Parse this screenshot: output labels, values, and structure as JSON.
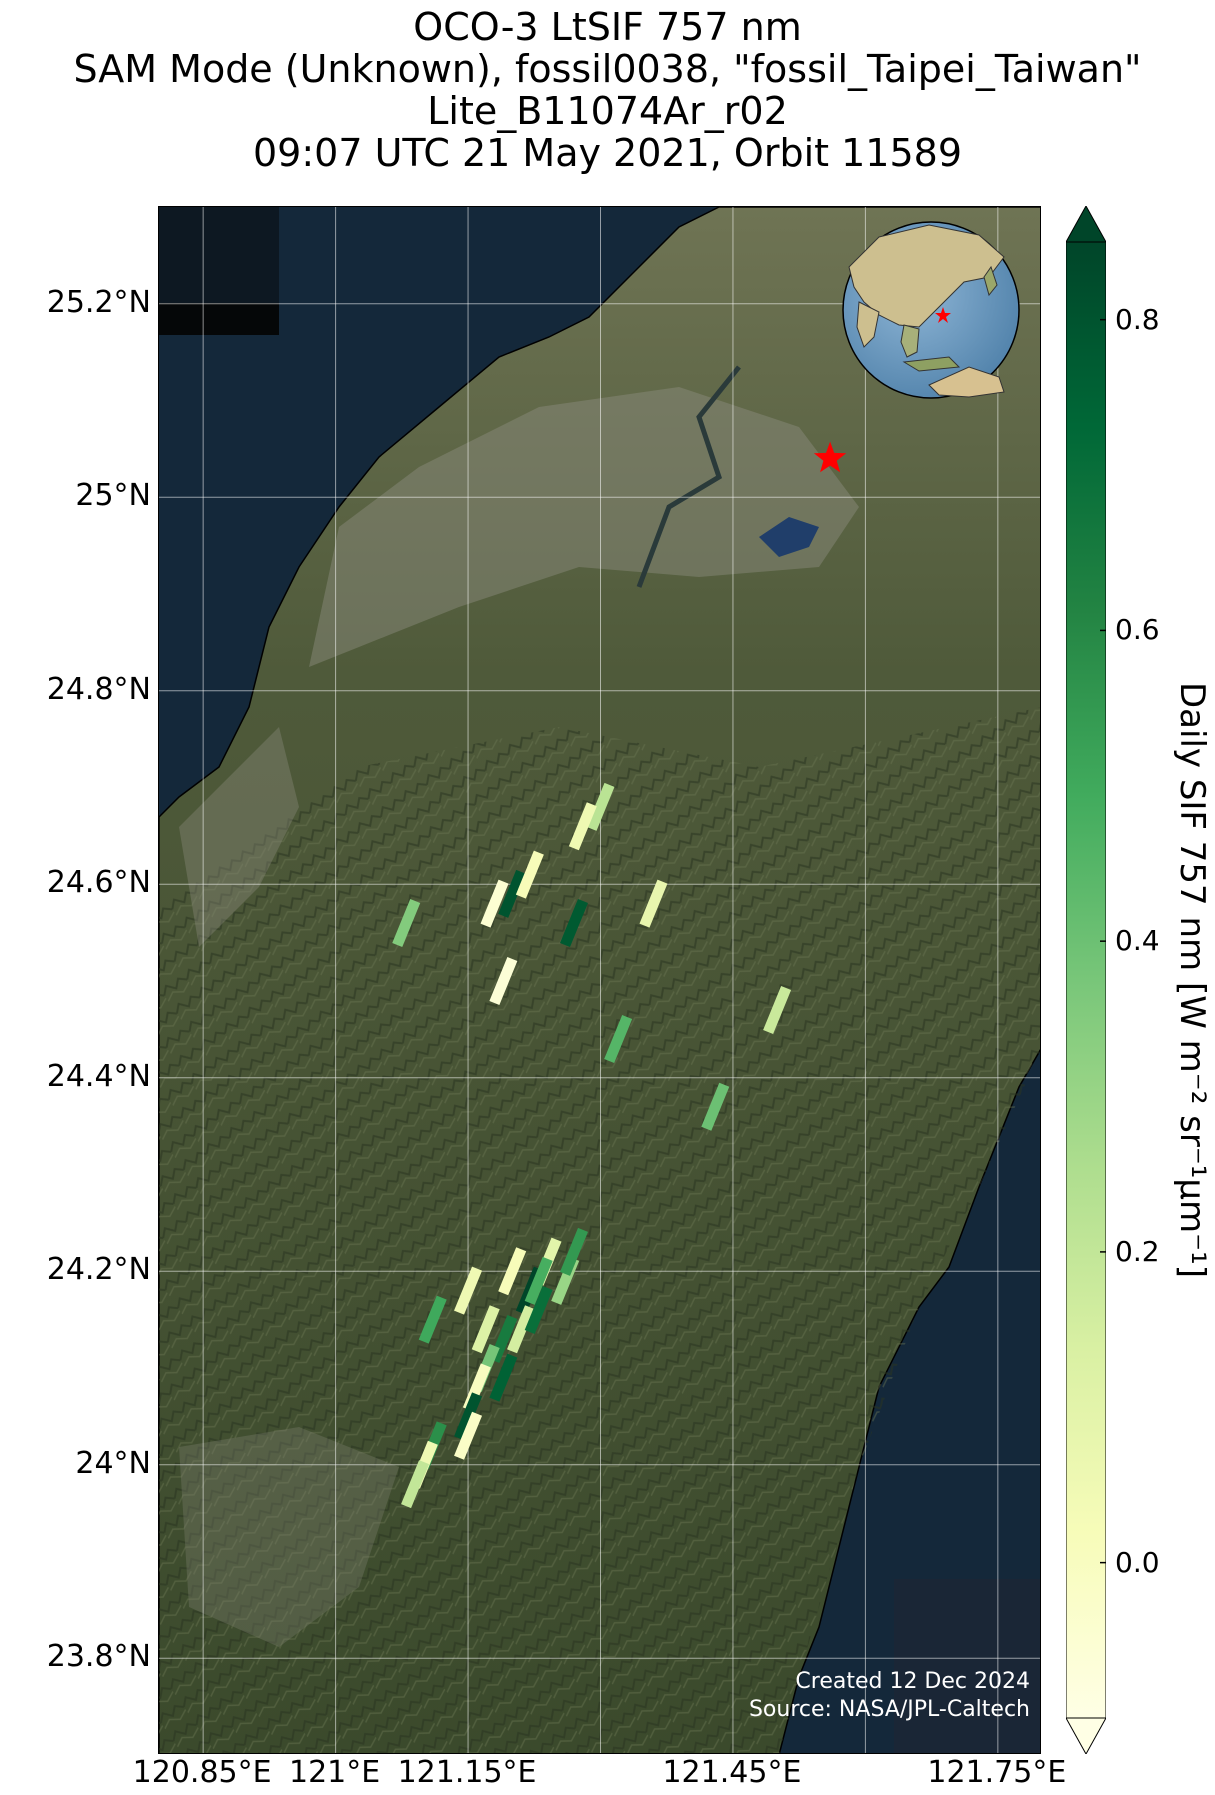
{
  "title": {
    "line1": "OCO-3 LtSIF 757 nm",
    "line2": "SAM Mode (Unknown), fossil0038, \"fossil_Taipei_Taiwan\"",
    "line3": "Lite_B11074Ar_r02",
    "line4": "09:07 UTC 21 May 2021, Orbit 11589"
  },
  "map": {
    "extent": {
      "lon_min": 120.8,
      "lon_max": 121.8,
      "lat_min": 23.7,
      "lat_max": 25.3
    },
    "basemap": "satellite imagery, northern Taiwan",
    "gridlines": true,
    "lat_ticks": [
      {
        "value": 25.2,
        "label": "25.2°N"
      },
      {
        "value": 25.0,
        "label": "25°N"
      },
      {
        "value": 24.8,
        "label": "24.8°N"
      },
      {
        "value": 24.6,
        "label": "24.6°N"
      },
      {
        "value": 24.4,
        "label": "24.4°N"
      },
      {
        "value": 24.2,
        "label": "24.2°N"
      },
      {
        "value": 24.0,
        "label": "24°N"
      },
      {
        "value": 23.8,
        "label": "23.8°N"
      }
    ],
    "lon_ticks": [
      {
        "value": 120.85,
        "label": "120.85°E"
      },
      {
        "value": 121.0,
        "label": "121°E"
      },
      {
        "value": 121.15,
        "label": "121.15°E"
      },
      {
        "value": 121.45,
        "label": "121.45°E"
      },
      {
        "value": 121.75,
        "label": "121.75°E"
      }
    ],
    "target": {
      "name": "fossil_Taipei_Taiwan",
      "lon": 121.56,
      "lat": 25.04,
      "marker": "red-star"
    },
    "inset_globe": {
      "center": "East Asia",
      "marker": "red-star",
      "position": "top-right"
    },
    "credit_line1": "Created 12 Dec 2024",
    "credit_line2": "Source: NASA/JPL-Caltech"
  },
  "colorbar": {
    "label": "Daily SIF 757 nm [W m⁻² sr⁻¹μm⁻¹]",
    "min": -0.1,
    "max": 0.85,
    "ticks": [
      {
        "value": 0.0,
        "label": "0.0"
      },
      {
        "value": 0.2,
        "label": "0.2"
      },
      {
        "value": 0.4,
        "label": "0.4"
      },
      {
        "value": 0.6,
        "label": "0.6"
      },
      {
        "value": 0.8,
        "label": "0.8"
      }
    ],
    "colormap": [
      "#ffffe5",
      "#f7fcb9",
      "#d9f0a3",
      "#addd8e",
      "#78c679",
      "#41ab5d",
      "#238443",
      "#006837",
      "#004529"
    ],
    "extend": "both"
  },
  "soundings": [
    {
      "lon": 121.3,
      "lat": 24.68,
      "sif": 0.22
    },
    {
      "lon": 121.28,
      "lat": 24.66,
      "sif": 0.05
    },
    {
      "lon": 121.2,
      "lat": 24.59,
      "sif": 0.8
    },
    {
      "lon": 121.18,
      "lat": 24.58,
      "sif": -0.05
    },
    {
      "lon": 121.22,
      "lat": 24.61,
      "sif": 0.02
    },
    {
      "lon": 121.08,
      "lat": 24.56,
      "sif": 0.35
    },
    {
      "lon": 121.27,
      "lat": 24.56,
      "sif": 0.78
    },
    {
      "lon": 121.36,
      "lat": 24.58,
      "sif": 0.08
    },
    {
      "lon": 121.19,
      "lat": 24.5,
      "sif": -0.06
    },
    {
      "lon": 121.32,
      "lat": 24.44,
      "sif": 0.45
    },
    {
      "lon": 121.5,
      "lat": 24.47,
      "sif": 0.18
    },
    {
      "lon": 121.43,
      "lat": 24.37,
      "sif": 0.4
    },
    {
      "lon": 121.11,
      "lat": 24.15,
      "sif": 0.5
    },
    {
      "lon": 121.15,
      "lat": 24.18,
      "sif": 0.05
    },
    {
      "lon": 121.2,
      "lat": 24.2,
      "sif": 0.02
    },
    {
      "lon": 121.22,
      "lat": 24.18,
      "sif": 0.85
    },
    {
      "lon": 121.24,
      "lat": 24.21,
      "sif": 0.1
    },
    {
      "lon": 121.26,
      "lat": 24.19,
      "sif": 0.3
    },
    {
      "lon": 121.27,
      "lat": 24.22,
      "sif": 0.55
    },
    {
      "lon": 121.19,
      "lat": 24.13,
      "sif": 0.65
    },
    {
      "lon": 121.21,
      "lat": 24.14,
      "sif": 0.15
    },
    {
      "lon": 121.23,
      "lat": 24.16,
      "sif": 0.7
    },
    {
      "lon": 121.17,
      "lat": 24.1,
      "sif": 0.38
    },
    {
      "lon": 121.16,
      "lat": 24.08,
      "sif": 0.0
    },
    {
      "lon": 121.19,
      "lat": 24.09,
      "sif": 0.75
    },
    {
      "lon": 121.15,
      "lat": 24.05,
      "sif": 0.8
    },
    {
      "lon": 121.15,
      "lat": 24.03,
      "sif": -0.02
    },
    {
      "lon": 121.11,
      "lat": 24.02,
      "sif": 0.58
    },
    {
      "lon": 121.1,
      "lat": 24.0,
      "sif": 0.05
    },
    {
      "lon": 121.09,
      "lat": 23.98,
      "sif": 0.2
    },
    {
      "lon": 121.23,
      "lat": 24.19,
      "sif": 0.48
    },
    {
      "lon": 121.17,
      "lat": 24.14,
      "sif": 0.12
    }
  ]
}
